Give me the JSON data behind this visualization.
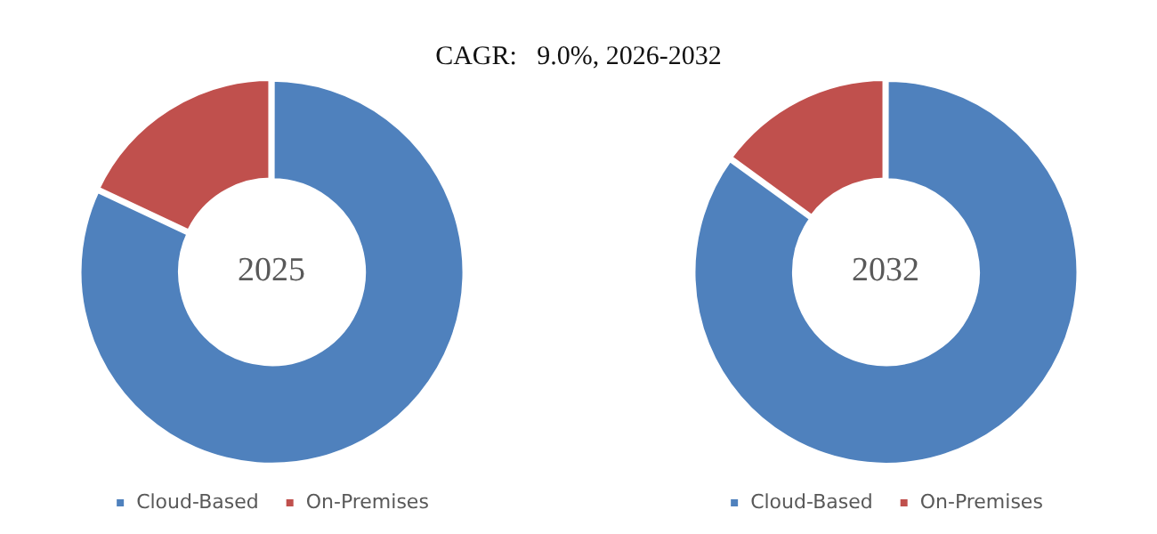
{
  "chart_data": [
    {
      "type": "other",
      "title": "CAGR:   9.0%, 2026-2032"
    },
    {
      "type": "donut",
      "title": "2025",
      "categories": [
        "Cloud-Based",
        "On-Premises"
      ],
      "values": [
        82,
        18
      ],
      "colors": [
        "#4f81bd",
        "#c0504d"
      ],
      "legend": "bottom"
    },
    {
      "type": "donut",
      "title": "2032",
      "categories": [
        "Cloud-Based",
        "On-Premises"
      ],
      "values": [
        85,
        15
      ],
      "colors": [
        "#4f81bd",
        "#c0504d"
      ],
      "legend": "bottom"
    }
  ]
}
